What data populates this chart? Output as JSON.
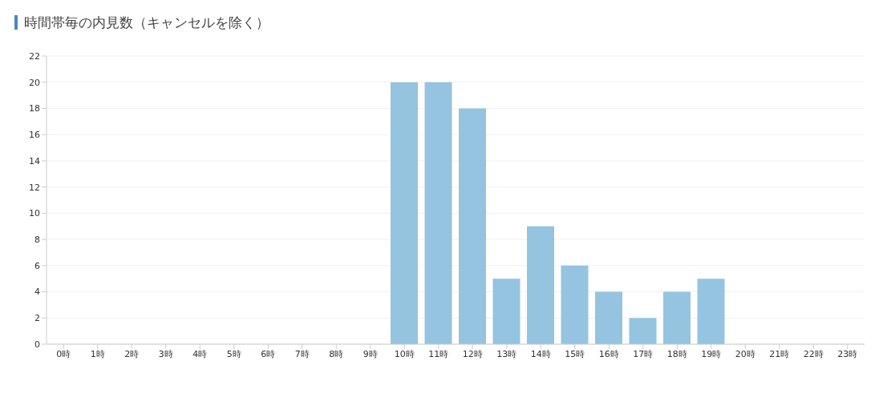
{
  "chart_data": {
    "type": "bar",
    "title": "時間帯毎の内見数（キャンセルを除く）",
    "categories": [
      "0時",
      "1時",
      "2時",
      "3時",
      "4時",
      "5時",
      "6時",
      "7時",
      "8時",
      "9時",
      "10時",
      "11時",
      "12時",
      "13時",
      "14時",
      "15時",
      "16時",
      "17時",
      "18時",
      "19時",
      "20時",
      "21時",
      "22時",
      "23時"
    ],
    "values": [
      0,
      0,
      0,
      0,
      0,
      0,
      0,
      0,
      0,
      0,
      20,
      20,
      18,
      5,
      9,
      6,
      4,
      2,
      4,
      5,
      0,
      0,
      0,
      0
    ],
    "color": "#94c4e0",
    "ylim": [
      0,
      22
    ],
    "yticks": [
      0,
      2,
      4,
      6,
      8,
      10,
      12,
      14,
      16,
      18,
      20,
      22
    ],
    "grid": "y",
    "legend": false
  }
}
